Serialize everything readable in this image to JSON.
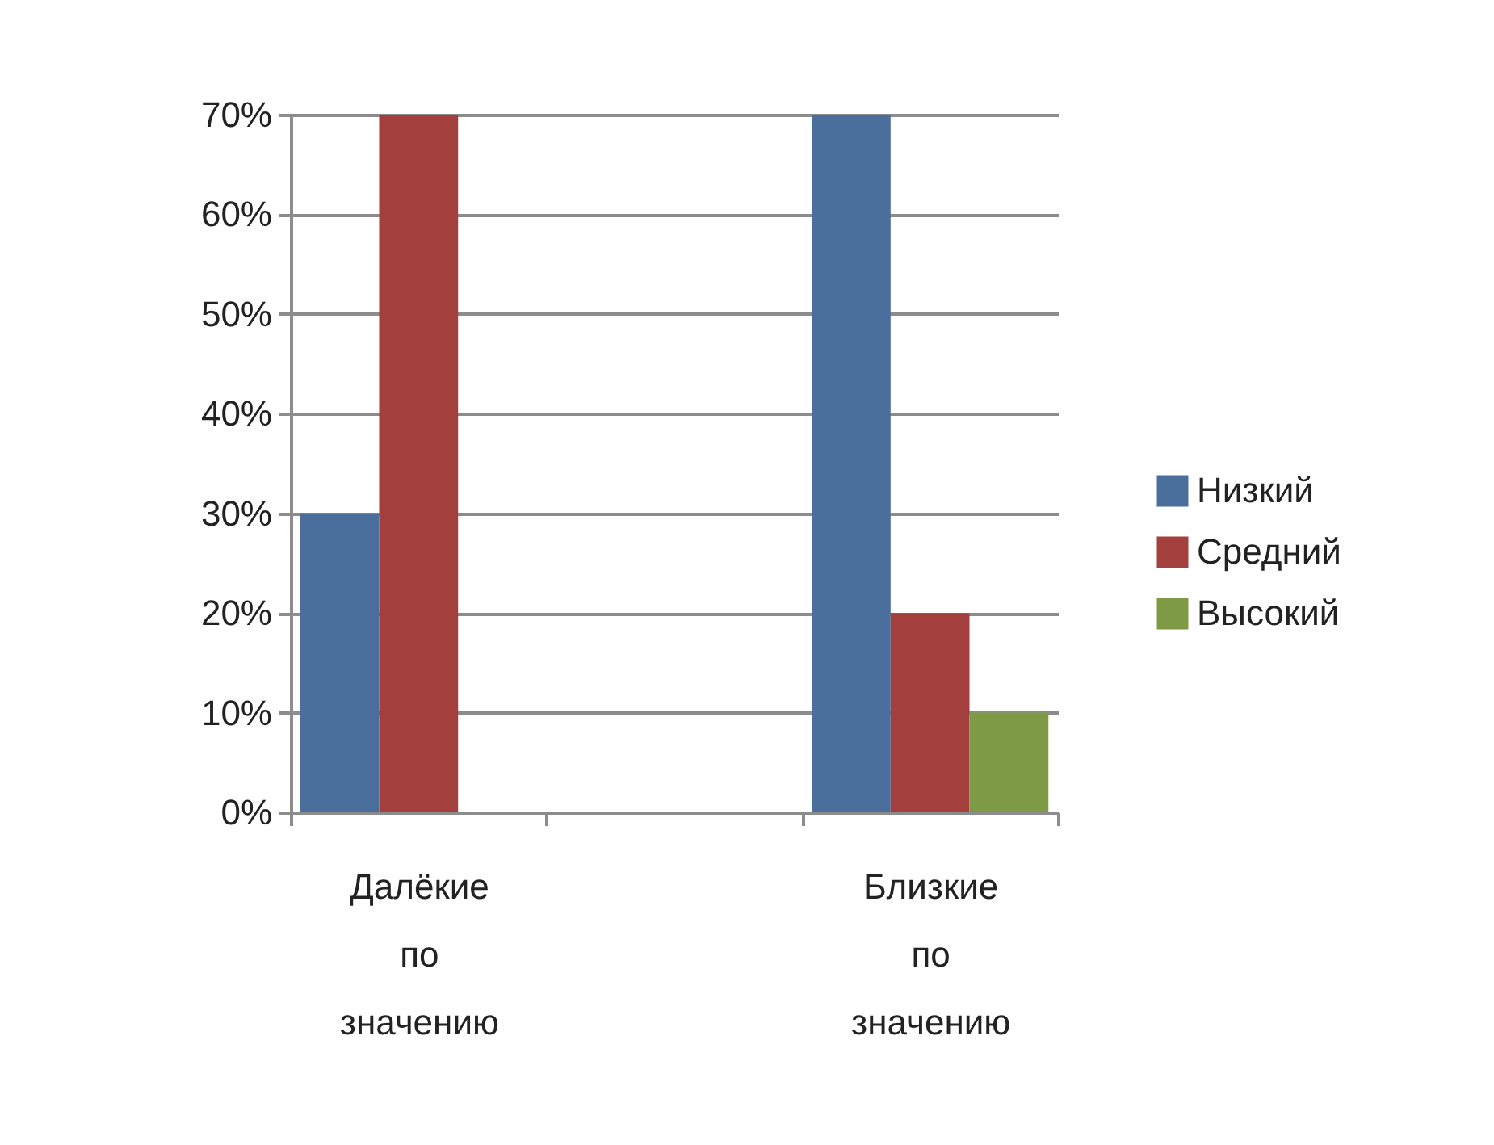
{
  "chart_data": {
    "type": "bar",
    "categories": [
      "Далёкие по значению",
      null,
      "Близкие по значению"
    ],
    "series": [
      {
        "name": "Низкий",
        "color": "#4a6f9c",
        "values": [
          30,
          null,
          70
        ]
      },
      {
        "name": "Средний",
        "color": "#a33f3d",
        "values": [
          70,
          null,
          20
        ]
      },
      {
        "name": "Высокий",
        "color": "#7e9a45",
        "values": [
          null,
          null,
          10
        ]
      }
    ],
    "ylim": [
      0,
      70
    ],
    "yticks": [
      {
        "value": 0,
        "label": "0%"
      },
      {
        "value": 10,
        "label": "10%"
      },
      {
        "value": 20,
        "label": "20%"
      },
      {
        "value": 30,
        "label": "30%"
      },
      {
        "value": 40,
        "label": "40%"
      },
      {
        "value": 50,
        "label": "50%"
      },
      {
        "value": 60,
        "label": "60%"
      },
      {
        "value": 70,
        "label": "70%"
      }
    ],
    "grid": "y",
    "legend": "right"
  }
}
